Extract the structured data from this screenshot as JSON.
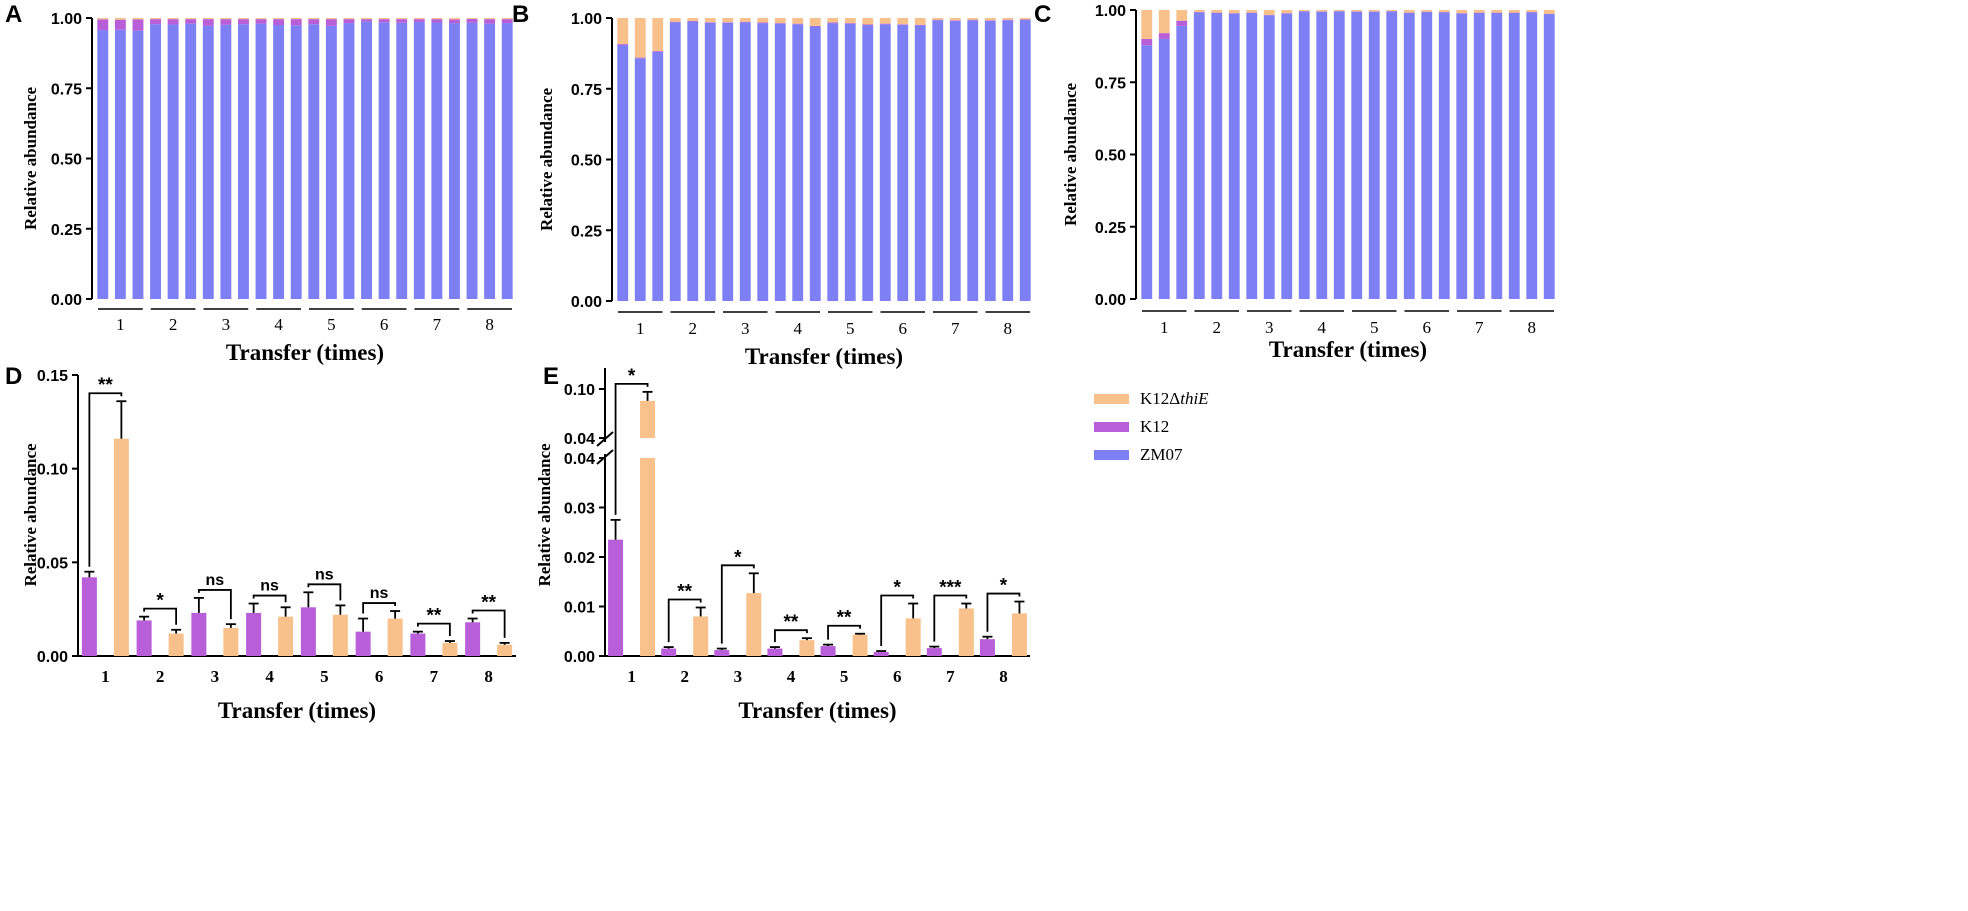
{
  "colors": {
    "zm07": "#7f7ff5",
    "k12": "#b85ed8",
    "k12_thie": "#f8c08a",
    "axis": "#000000"
  },
  "legend": {
    "k12_thie_prefix": "K12Δ",
    "k12_thie_italic": "thiE",
    "k12": "K12",
    "zm07": "ZM07"
  },
  "chart_data": [
    {
      "panel": "A",
      "type": "bar",
      "stacked": true,
      "xlabel": "Transfer (times)",
      "ylabel": "Relative abundance",
      "ylim": [
        0,
        1
      ],
      "yticks": [
        "0.00",
        "0.25",
        "0.50",
        "0.75",
        "1.00"
      ],
      "groups": [
        "1",
        "2",
        "3",
        "4",
        "5",
        "6",
        "7",
        "8"
      ],
      "replicates_per_group": 3,
      "series": [
        {
          "name": "ZM07",
          "values": [
            0.957,
            0.958,
            0.955,
            0.978,
            0.977,
            0.98,
            0.972,
            0.976,
            0.978,
            0.98,
            0.975,
            0.974,
            0.978,
            0.972,
            0.982,
            0.988,
            0.985,
            0.983,
            0.986,
            0.984,
            0.982,
            0.983,
            0.98,
            0.982
          ]
        },
        {
          "name": "K12",
          "values": [
            0.038,
            0.036,
            0.04,
            0.018,
            0.019,
            0.016,
            0.024,
            0.02,
            0.018,
            0.016,
            0.021,
            0.022,
            0.018,
            0.024,
            0.014,
            0.008,
            0.011,
            0.013,
            0.01,
            0.012,
            0.013,
            0.014,
            0.016,
            0.014
          ]
        },
        {
          "name": "K12ΔthiE",
          "values": [
            0.005,
            0.006,
            0.005,
            0.004,
            0.004,
            0.004,
            0.004,
            0.004,
            0.004,
            0.004,
            0.004,
            0.004,
            0.004,
            0.004,
            0.004,
            0.004,
            0.004,
            0.004,
            0.004,
            0.004,
            0.005,
            0.003,
            0.004,
            0.004
          ]
        }
      ]
    },
    {
      "panel": "B",
      "type": "bar",
      "stacked": true,
      "xlabel": "Transfer (times)",
      "ylabel": "Relative abundance",
      "ylim": [
        0,
        1
      ],
      "yticks": [
        "0.00",
        "0.25",
        "0.50",
        "0.75",
        "1.00"
      ],
      "groups": [
        "1",
        "2",
        "3",
        "4",
        "5",
        "6",
        "7",
        "8"
      ],
      "replicates_per_group": 3,
      "series": [
        {
          "name": "ZM07",
          "values": [
            0.905,
            0.858,
            0.88,
            0.985,
            0.988,
            0.983,
            0.983,
            0.985,
            0.982,
            0.98,
            0.978,
            0.97,
            0.982,
            0.98,
            0.975,
            0.978,
            0.976,
            0.974,
            0.992,
            0.99,
            0.992,
            0.99,
            0.992,
            0.993
          ]
        },
        {
          "name": "K12",
          "values": [
            0.003,
            0.002,
            0.003,
            0.002,
            0.002,
            0.002,
            0.002,
            0.002,
            0.002,
            0.002,
            0.002,
            0.002,
            0.002,
            0.002,
            0.002,
            0.002,
            0.002,
            0.002,
            0.002,
            0.002,
            0.002,
            0.002,
            0.002,
            0.002
          ]
        },
        {
          "name": "K12ΔthiE",
          "values": [
            0.092,
            0.14,
            0.117,
            0.013,
            0.01,
            0.015,
            0.015,
            0.013,
            0.016,
            0.018,
            0.02,
            0.028,
            0.016,
            0.018,
            0.023,
            0.02,
            0.022,
            0.024,
            0.006,
            0.008,
            0.006,
            0.008,
            0.006,
            0.005
          ]
        }
      ]
    },
    {
      "panel": "C",
      "type": "bar",
      "stacked": true,
      "xlabel": "Transfer (times)",
      "ylabel": "Relative abundance",
      "ylim": [
        0,
        1
      ],
      "yticks": [
        "0.00",
        "0.25",
        "0.50",
        "0.75",
        "1.00"
      ],
      "groups": [
        "1",
        "2",
        "3",
        "4",
        "5",
        "6",
        "7",
        "8"
      ],
      "replicates_per_group": 3,
      "series": [
        {
          "name": "ZM07",
          "values": [
            0.878,
            0.9,
            0.945,
            0.992,
            0.99,
            0.988,
            0.99,
            0.982,
            0.988,
            0.995,
            0.994,
            0.995,
            0.994,
            0.994,
            0.995,
            0.99,
            0.993,
            0.992,
            0.988,
            0.99,
            0.99,
            0.99,
            0.992,
            0.986
          ]
        },
        {
          "name": "K12",
          "values": [
            0.022,
            0.02,
            0.018,
            0.001,
            0.001,
            0.001,
            0.001,
            0.001,
            0.001,
            0.001,
            0.001,
            0.001,
            0.001,
            0.001,
            0.001,
            0.001,
            0.001,
            0.001,
            0.001,
            0.001,
            0.001,
            0.001,
            0.001,
            0.001
          ]
        },
        {
          "name": "K12ΔthiE",
          "values": [
            0.1,
            0.08,
            0.037,
            0.007,
            0.009,
            0.011,
            0.009,
            0.017,
            0.011,
            0.004,
            0.005,
            0.004,
            0.005,
            0.005,
            0.004,
            0.009,
            0.006,
            0.007,
            0.011,
            0.009,
            0.009,
            0.009,
            0.007,
            0.013
          ]
        }
      ]
    },
    {
      "panel": "D",
      "type": "bar",
      "xlabel": "Transfer (times)",
      "ylabel": "Relative abundance",
      "ylim": [
        0,
        0.15
      ],
      "yticks": [
        "0.00",
        "0.05",
        "0.10",
        "0.15"
      ],
      "categories": [
        "1",
        "2",
        "3",
        "4",
        "5",
        "6",
        "7",
        "8"
      ],
      "series": [
        {
          "name": "K12",
          "values": [
            0.042,
            0.019,
            0.023,
            0.023,
            0.026,
            0.013,
            0.012,
            0.018
          ],
          "errors": [
            0.003,
            0.002,
            0.008,
            0.005,
            0.008,
            0.007,
            0.001,
            0.002
          ]
        },
        {
          "name": "K12ΔthiE",
          "values": [
            0.116,
            0.012,
            0.015,
            0.021,
            0.022,
            0.02,
            0.007,
            0.006
          ],
          "errors": [
            0.02,
            0.002,
            0.002,
            0.005,
            0.005,
            0.004,
            0.001,
            0.001
          ]
        }
      ],
      "significance": [
        "**",
        "*",
        "ns",
        "ns",
        "ns",
        "ns",
        "**",
        "**"
      ]
    },
    {
      "panel": "E",
      "type": "bar",
      "xlabel": "Transfer (times)",
      "ylabel": "Relative abundance",
      "ylim": [
        0,
        0.1
      ],
      "axis_break": [
        0.04,
        0.04
      ],
      "yticks_lower": [
        "0.00",
        "0.01",
        "0.02",
        "0.03",
        "0.04"
      ],
      "yticks_upper": [
        "0.04",
        "0.10"
      ],
      "categories": [
        "1",
        "2",
        "3",
        "4",
        "5",
        "6",
        "7",
        "8"
      ],
      "series": [
        {
          "name": "K12",
          "values": [
            0.0235,
            0.0015,
            0.0012,
            0.0015,
            0.002,
            0.0008,
            0.0016,
            0.0034
          ],
          "errors": [
            0.004,
            0.0003,
            0.0003,
            0.0003,
            0.0003,
            0.0002,
            0.0003,
            0.0005
          ]
        },
        {
          "name": "K12ΔthiE",
          "values": [
            0.0855,
            0.008,
            0.0127,
            0.0032,
            0.0043,
            0.0076,
            0.0096,
            0.0086
          ],
          "errors": [
            0.011,
            0.0018,
            0.004,
            0.0004,
            0.0002,
            0.003,
            0.001,
            0.0024
          ]
        }
      ],
      "significance": [
        "*",
        "**",
        "*",
        "**",
        "**",
        "*",
        "***",
        "*"
      ]
    }
  ]
}
